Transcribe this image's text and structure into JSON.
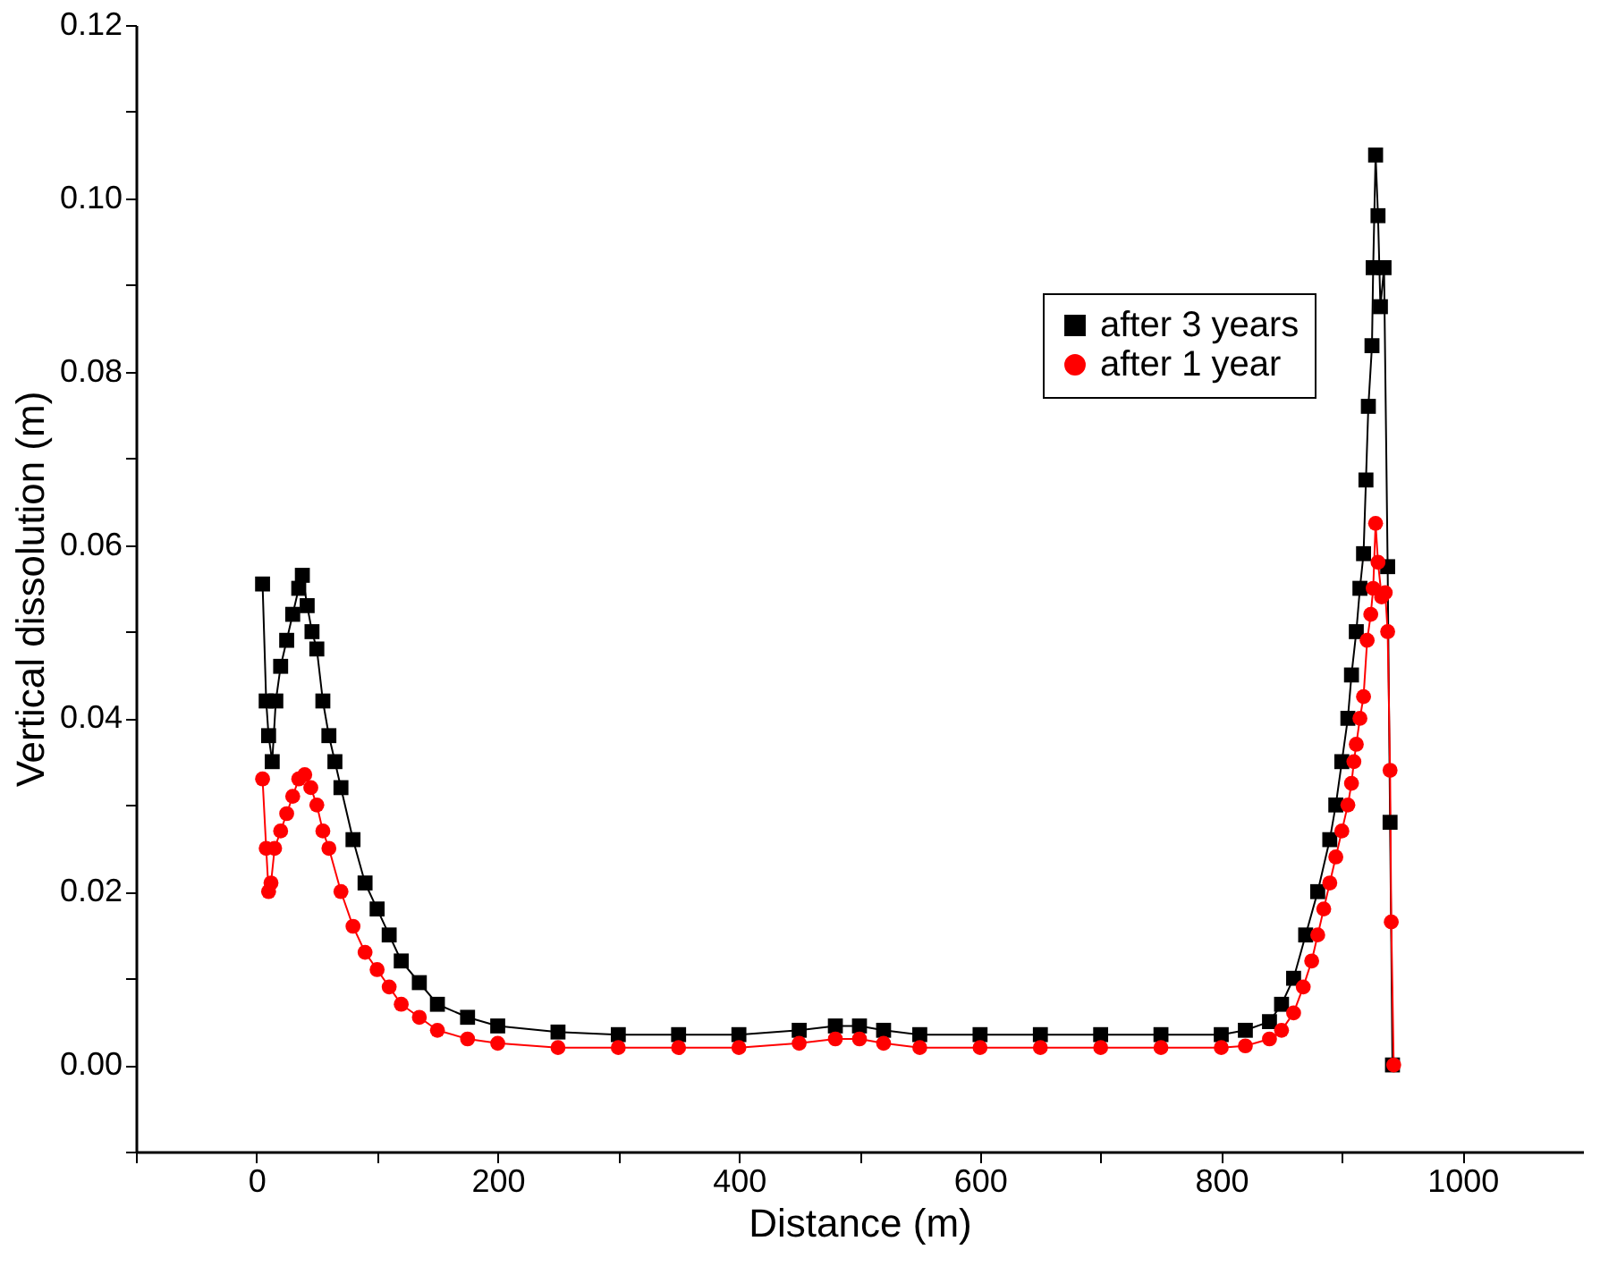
{
  "chart_data": {
    "type": "line",
    "xlabel": "Distance (m)",
    "ylabel": "Vertical dissolution (m)",
    "xlim": [
      -100,
      1100
    ],
    "ylim": [
      -0.01,
      0.12
    ],
    "xticks": [
      {
        "value": -100,
        "label": null
      },
      0,
      {
        "value": 100,
        "label": null
      },
      200,
      {
        "value": 300,
        "label": null
      },
      400,
      {
        "value": 500,
        "label": null
      },
      600,
      {
        "value": 700,
        "label": null
      },
      800,
      {
        "value": 900,
        "label": null
      },
      1000
    ],
    "yticks": [
      {
        "value": -0.01,
        "label": null
      },
      {
        "value": 0,
        "label": "0.00"
      },
      {
        "value": 0.01,
        "label": null
      },
      {
        "value": 0.02,
        "label": "0.02"
      },
      {
        "value": 0.03,
        "label": null
      },
      {
        "value": 0.04,
        "label": "0.04"
      },
      {
        "value": 0.05,
        "label": null
      },
      {
        "value": 0.06,
        "label": "0.06"
      },
      {
        "value": 0.07,
        "label": null
      },
      {
        "value": 0.08,
        "label": "0.08"
      },
      {
        "value": 0.09,
        "label": null
      },
      {
        "value": 0.1,
        "label": "0.10"
      },
      {
        "value": 0.11,
        "label": null
      },
      {
        "value": 0.12,
        "label": "0.12"
      }
    ],
    "grid": false,
    "legend": "top right",
    "line_style": "solid",
    "series": [
      {
        "name": "after 3 years",
        "color": "#000000",
        "marker": "square",
        "x": [
          5,
          8,
          10,
          13,
          16,
          20,
          25,
          30,
          35,
          38,
          42,
          46,
          50,
          55,
          60,
          65,
          70,
          80,
          90,
          100,
          110,
          120,
          135,
          150,
          175,
          200,
          250,
          300,
          350,
          400,
          450,
          480,
          500,
          520,
          550,
          600,
          650,
          700,
          750,
          800,
          820,
          840,
          850,
          860,
          870,
          880,
          890,
          895,
          900,
          905,
          908,
          912,
          915,
          918,
          920,
          922,
          925,
          926,
          928,
          930,
          932,
          935,
          938,
          940,
          942
        ],
        "values": [
          0.0555,
          0.042,
          0.038,
          0.035,
          0.042,
          0.046,
          0.049,
          0.052,
          0.055,
          0.0565,
          0.053,
          0.05,
          0.048,
          0.042,
          0.038,
          0.035,
          0.032,
          0.026,
          0.021,
          0.018,
          0.015,
          0.012,
          0.0095,
          0.007,
          0.0055,
          0.0045,
          0.0038,
          0.0035,
          0.0035,
          0.0035,
          0.004,
          0.0045,
          0.0045,
          0.004,
          0.0035,
          0.0035,
          0.0035,
          0.0035,
          0.0035,
          0.0035,
          0.004,
          0.005,
          0.007,
          0.01,
          0.015,
          0.02,
          0.026,
          0.03,
          0.035,
          0.04,
          0.045,
          0.05,
          0.055,
          0.059,
          0.0675,
          0.076,
          0.083,
          0.092,
          0.105,
          0.098,
          0.0875,
          0.092,
          0.0575,
          0.028,
          0.0
        ]
      },
      {
        "name": "after 1 year",
        "color": "#ff0000",
        "marker": "circle",
        "x": [
          5,
          8,
          10,
          12,
          15,
          20,
          25,
          30,
          35,
          40,
          45,
          50,
          55,
          60,
          70,
          80,
          90,
          100,
          110,
          120,
          135,
          150,
          175,
          200,
          250,
          300,
          350,
          400,
          450,
          480,
          500,
          520,
          550,
          600,
          650,
          700,
          750,
          800,
          820,
          840,
          850,
          860,
          868,
          875,
          880,
          885,
          890,
          895,
          900,
          905,
          908,
          910,
          912,
          915,
          918,
          921,
          924,
          926,
          928,
          930,
          933,
          936,
          938,
          940,
          941,
          943
        ],
        "values": [
          0.033,
          0.025,
          0.02,
          0.021,
          0.025,
          0.027,
          0.029,
          0.031,
          0.033,
          0.0335,
          0.032,
          0.03,
          0.027,
          0.025,
          0.02,
          0.016,
          0.013,
          0.011,
          0.009,
          0.007,
          0.0055,
          0.004,
          0.003,
          0.0025,
          0.002,
          0.002,
          0.002,
          0.002,
          0.0025,
          0.003,
          0.003,
          0.0025,
          0.002,
          0.002,
          0.002,
          0.002,
          0.002,
          0.002,
          0.0022,
          0.003,
          0.004,
          0.006,
          0.009,
          0.012,
          0.015,
          0.018,
          0.021,
          0.024,
          0.027,
          0.03,
          0.0325,
          0.035,
          0.037,
          0.04,
          0.0425,
          0.049,
          0.052,
          0.055,
          0.0625,
          0.058,
          0.054,
          0.0545,
          0.05,
          0.034,
          0.0165,
          0.0
        ]
      }
    ]
  }
}
